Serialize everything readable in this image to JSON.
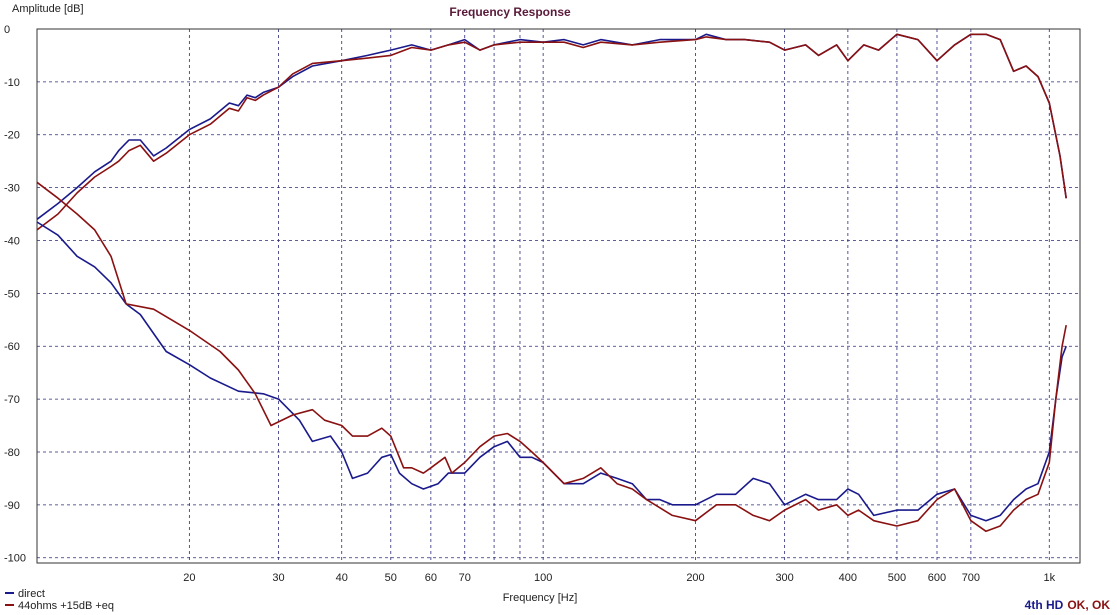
{
  "chart_data": {
    "type": "line",
    "title": "Frequency Response",
    "xlabel": "Frequency [Hz]",
    "ylabel": "Amplitude [dB]",
    "x_scale": "log",
    "xlim": [
      10,
      1150
    ],
    "ylim": [
      -101,
      0
    ],
    "grid": true,
    "legend_position": "bottom-left",
    "x_ticks": [
      {
        "v": 20,
        "label": "20"
      },
      {
        "v": 30,
        "label": "30"
      },
      {
        "v": 40,
        "label": "40"
      },
      {
        "v": 50,
        "label": "50"
      },
      {
        "v": 60,
        "label": "60"
      },
      {
        "v": 70,
        "label": "70"
      },
      {
        "v": 100,
        "label": "100"
      },
      {
        "v": 200,
        "label": "200"
      },
      {
        "v": 300,
        "label": "300"
      },
      {
        "v": 400,
        "label": "400"
      },
      {
        "v": 500,
        "label": "500"
      },
      {
        "v": 600,
        "label": "600"
      },
      {
        "v": 700,
        "label": "700"
      },
      {
        "v": 1000,
        "label": "1k"
      }
    ],
    "x_minor_grid": [
      80,
      90
    ],
    "y_ticks": [
      0,
      -10,
      -20,
      -30,
      -40,
      -50,
      -60,
      -70,
      -80,
      -90,
      -100
    ],
    "series": [
      {
        "name": "direct",
        "color": "#1a1a8c",
        "points": [
          [
            10,
            -36
          ],
          [
            11,
            -33
          ],
          [
            12,
            -30
          ],
          [
            13,
            -27
          ],
          [
            14,
            -25
          ],
          [
            14.5,
            -23
          ],
          [
            15.2,
            -21
          ],
          [
            16,
            -21
          ],
          [
            17,
            -24
          ],
          [
            18,
            -22.5
          ],
          [
            20,
            -19
          ],
          [
            22,
            -17
          ],
          [
            24,
            -14
          ],
          [
            25,
            -14.5
          ],
          [
            26,
            -12.5
          ],
          [
            27,
            -13
          ],
          [
            28,
            -12
          ],
          [
            30,
            -11
          ],
          [
            32,
            -9
          ],
          [
            35,
            -7
          ],
          [
            40,
            -6
          ],
          [
            45,
            -5
          ],
          [
            50,
            -4
          ],
          [
            55,
            -3
          ],
          [
            60,
            -4
          ],
          [
            65,
            -3
          ],
          [
            70,
            -2
          ],
          [
            75,
            -4
          ],
          [
            80,
            -3
          ],
          [
            90,
            -2
          ],
          [
            100,
            -2.5
          ],
          [
            110,
            -2
          ],
          [
            120,
            -3
          ],
          [
            130,
            -2
          ],
          [
            150,
            -3
          ],
          [
            170,
            -2
          ],
          [
            200,
            -2
          ],
          [
            210,
            -1
          ],
          [
            230,
            -2
          ],
          [
            250,
            -2
          ],
          [
            280,
            -2.5
          ],
          [
            300,
            -4
          ],
          [
            330,
            -3
          ],
          [
            350,
            -5
          ],
          [
            380,
            -3
          ],
          [
            400,
            -6
          ],
          [
            430,
            -3
          ],
          [
            460,
            -4
          ],
          [
            500,
            -1
          ],
          [
            550,
            -2
          ],
          [
            600,
            -6
          ],
          [
            650,
            -3
          ],
          [
            700,
            -1
          ],
          [
            750,
            -1
          ],
          [
            800,
            -2
          ],
          [
            850,
            -8
          ],
          [
            900,
            -7
          ],
          [
            950,
            -9
          ],
          [
            1000,
            -14
          ],
          [
            1050,
            -24
          ],
          [
            1080,
            -32
          ]
        ]
      },
      {
        "name": "44ohms +15dB +eq",
        "color": "#8a1111",
        "points": [
          [
            10,
            -38
          ],
          [
            11,
            -35
          ],
          [
            12,
            -31
          ],
          [
            13,
            -28
          ],
          [
            14,
            -26
          ],
          [
            14.5,
            -25
          ],
          [
            15.2,
            -23
          ],
          [
            16,
            -22
          ],
          [
            17,
            -25
          ],
          [
            18,
            -23.5
          ],
          [
            20,
            -20
          ],
          [
            22,
            -18
          ],
          [
            24,
            -15
          ],
          [
            25,
            -15.5
          ],
          [
            26,
            -13
          ],
          [
            27,
            -13.5
          ],
          [
            28,
            -12.5
          ],
          [
            30,
            -11
          ],
          [
            32,
            -8.5
          ],
          [
            35,
            -6.5
          ],
          [
            40,
            -6
          ],
          [
            45,
            -5.5
          ],
          [
            50,
            -5
          ],
          [
            55,
            -3.5
          ],
          [
            60,
            -4
          ],
          [
            65,
            -3
          ],
          [
            70,
            -2.5
          ],
          [
            75,
            -4
          ],
          [
            80,
            -3
          ],
          [
            90,
            -2.5
          ],
          [
            100,
            -2.5
          ],
          [
            110,
            -2.5
          ],
          [
            120,
            -3.5
          ],
          [
            130,
            -2.5
          ],
          [
            150,
            -3
          ],
          [
            170,
            -2.5
          ],
          [
            200,
            -2
          ],
          [
            210,
            -1.5
          ],
          [
            230,
            -2
          ],
          [
            250,
            -2
          ],
          [
            280,
            -2.5
          ],
          [
            300,
            -4
          ],
          [
            330,
            -3
          ],
          [
            350,
            -5
          ],
          [
            380,
            -3
          ],
          [
            400,
            -6
          ],
          [
            430,
            -3
          ],
          [
            460,
            -4
          ],
          [
            500,
            -1
          ],
          [
            550,
            -2
          ],
          [
            600,
            -6
          ],
          [
            650,
            -3
          ],
          [
            700,
            -1
          ],
          [
            750,
            -1
          ],
          [
            800,
            -2
          ],
          [
            850,
            -8
          ],
          [
            900,
            -7
          ],
          [
            950,
            -9
          ],
          [
            1000,
            -14
          ],
          [
            1050,
            -24
          ],
          [
            1080,
            -32
          ]
        ]
      },
      {
        "name": "direct",
        "color": "#1a1a8c",
        "points": [
          [
            10,
            -36.5
          ],
          [
            11,
            -39
          ],
          [
            12,
            -43
          ],
          [
            13,
            -45
          ],
          [
            14,
            -48
          ],
          [
            15,
            -52
          ],
          [
            16,
            -54
          ],
          [
            18,
            -61
          ],
          [
            20,
            -63.5
          ],
          [
            22,
            -66
          ],
          [
            25,
            -68.5
          ],
          [
            28,
            -69
          ],
          [
            30,
            -70
          ],
          [
            33,
            -74
          ],
          [
            35,
            -78
          ],
          [
            38,
            -77
          ],
          [
            40,
            -80
          ],
          [
            42,
            -85
          ],
          [
            45,
            -84
          ],
          [
            48,
            -81
          ],
          [
            50,
            -80.5
          ],
          [
            52,
            -84
          ],
          [
            55,
            -86
          ],
          [
            58,
            -87
          ],
          [
            62,
            -86
          ],
          [
            65,
            -84
          ],
          [
            70,
            -84
          ],
          [
            75,
            -81
          ],
          [
            80,
            -79
          ],
          [
            85,
            -78
          ],
          [
            90,
            -81
          ],
          [
            95,
            -81
          ],
          [
            100,
            -82
          ],
          [
            110,
            -86
          ],
          [
            120,
            -86
          ],
          [
            130,
            -84
          ],
          [
            140,
            -85
          ],
          [
            150,
            -86
          ],
          [
            160,
            -89
          ],
          [
            170,
            -89
          ],
          [
            180,
            -90
          ],
          [
            200,
            -90
          ],
          [
            220,
            -88
          ],
          [
            240,
            -88
          ],
          [
            260,
            -85
          ],
          [
            280,
            -86
          ],
          [
            300,
            -90
          ],
          [
            330,
            -88
          ],
          [
            350,
            -89
          ],
          [
            380,
            -89
          ],
          [
            400,
            -87
          ],
          [
            420,
            -88
          ],
          [
            450,
            -92
          ],
          [
            500,
            -91
          ],
          [
            550,
            -91
          ],
          [
            600,
            -88
          ],
          [
            650,
            -87
          ],
          [
            700,
            -92
          ],
          [
            750,
            -93
          ],
          [
            800,
            -92
          ],
          [
            850,
            -89
          ],
          [
            900,
            -87
          ],
          [
            950,
            -86
          ],
          [
            1000,
            -80
          ],
          [
            1030,
            -70
          ],
          [
            1060,
            -62
          ],
          [
            1080,
            -60
          ]
        ]
      },
      {
        "name": "44ohms +15dB +eq",
        "color": "#8a1111",
        "points": [
          [
            10,
            -29
          ],
          [
            11,
            -32
          ],
          [
            12,
            -35
          ],
          [
            13,
            -38
          ],
          [
            14,
            -43
          ],
          [
            15,
            -52
          ],
          [
            17,
            -53
          ],
          [
            20,
            -57
          ],
          [
            23,
            -61
          ],
          [
            25,
            -64.5
          ],
          [
            27,
            -69
          ],
          [
            29,
            -75
          ],
          [
            32,
            -73
          ],
          [
            35,
            -72
          ],
          [
            37,
            -74
          ],
          [
            40,
            -75
          ],
          [
            42,
            -77
          ],
          [
            45,
            -77
          ],
          [
            48,
            -75.5
          ],
          [
            50,
            -77
          ],
          [
            53,
            -83
          ],
          [
            55,
            -83
          ],
          [
            58,
            -84
          ],
          [
            60,
            -83
          ],
          [
            64,
            -81
          ],
          [
            66,
            -84
          ],
          [
            70,
            -82
          ],
          [
            75,
            -79
          ],
          [
            80,
            -77
          ],
          [
            85,
            -76.5
          ],
          [
            90,
            -78
          ],
          [
            95,
            -80
          ],
          [
            100,
            -82
          ],
          [
            110,
            -86
          ],
          [
            120,
            -85
          ],
          [
            130,
            -83
          ],
          [
            140,
            -86
          ],
          [
            150,
            -87
          ],
          [
            160,
            -89
          ],
          [
            180,
            -92
          ],
          [
            200,
            -93
          ],
          [
            220,
            -90
          ],
          [
            240,
            -90
          ],
          [
            260,
            -92
          ],
          [
            280,
            -93
          ],
          [
            300,
            -91
          ],
          [
            330,
            -89
          ],
          [
            350,
            -91
          ],
          [
            380,
            -90
          ],
          [
            400,
            -92
          ],
          [
            420,
            -91
          ],
          [
            450,
            -93
          ],
          [
            500,
            -94
          ],
          [
            550,
            -93
          ],
          [
            600,
            -89
          ],
          [
            650,
            -87
          ],
          [
            700,
            -93
          ],
          [
            750,
            -95
          ],
          [
            800,
            -94
          ],
          [
            850,
            -91
          ],
          [
            900,
            -89
          ],
          [
            950,
            -88
          ],
          [
            1000,
            -82
          ],
          [
            1030,
            -70
          ],
          [
            1060,
            -60
          ],
          [
            1080,
            -56
          ]
        ]
      }
    ],
    "legend": [
      {
        "label": "direct",
        "color": "#1a1a8c"
      },
      {
        "label": "44ohms +15dB +eq",
        "color": "#8a1111"
      }
    ],
    "stamp": {
      "main": "4th HD",
      "rest": "OK, OK",
      "main_color": "#1a1a8c",
      "rest_color": "#8a1111"
    }
  }
}
